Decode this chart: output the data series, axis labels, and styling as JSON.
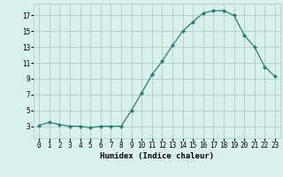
{
  "x": [
    0,
    1,
    2,
    3,
    4,
    5,
    6,
    7,
    8,
    9,
    10,
    11,
    12,
    13,
    14,
    15,
    16,
    17,
    18,
    19,
    20,
    21,
    22,
    23
  ],
  "y": [
    3.1,
    3.5,
    3.2,
    3.0,
    3.0,
    2.8,
    3.0,
    3.0,
    3.0,
    5.0,
    7.2,
    9.5,
    11.2,
    13.2,
    15.0,
    16.2,
    17.3,
    17.6,
    17.6,
    17.0,
    14.5,
    13.0,
    10.5,
    9.3
  ],
  "line_color": "#2d7d6e",
  "marker": "D",
  "marker_size": 2,
  "bg_color": "#d8f0ee",
  "grid_color": "#aecfcb",
  "xlabel": "Humidex (Indice chaleur)",
  "xlim": [
    -0.5,
    23.5
  ],
  "ylim": [
    1.5,
    18.5
  ],
  "yticks": [
    3,
    5,
    7,
    9,
    11,
    13,
    15,
    17
  ],
  "xticks": [
    0,
    1,
    2,
    3,
    4,
    5,
    6,
    7,
    8,
    9,
    10,
    11,
    12,
    13,
    14,
    15,
    16,
    17,
    18,
    19,
    20,
    21,
    22,
    23
  ],
  "label_fontsize": 6.5,
  "tick_fontsize": 5.5
}
